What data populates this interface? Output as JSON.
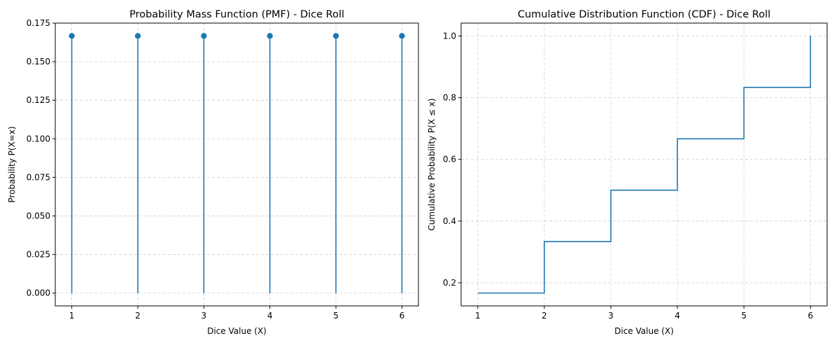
{
  "chart_data": [
    {
      "type": "stem",
      "title": "Probability Mass Function (PMF) - Dice Roll",
      "xlabel": "Dice Value (X)",
      "ylabel": "Probability P(X=x)",
      "x": [
        1,
        2,
        3,
        4,
        5,
        6
      ],
      "y": [
        0.1667,
        0.1667,
        0.1667,
        0.1667,
        0.1667,
        0.1667
      ],
      "xticks": [
        1,
        2,
        3,
        4,
        5,
        6
      ],
      "yticks": [
        "0.000",
        "0.025",
        "0.050",
        "0.075",
        "0.100",
        "0.125",
        "0.150",
        "0.175"
      ],
      "xlim": [
        0.75,
        6.25
      ],
      "ylim": [
        -0.00833,
        0.175
      ],
      "grid": true,
      "color": "#1f77b4"
    },
    {
      "type": "line",
      "step": "post",
      "title": "Cumulative Distribution Function (CDF) - Dice Roll",
      "xlabel": "Dice Value (X)",
      "ylabel": "Cumulative Probability P(X ≤ x)",
      "x": [
        1,
        2,
        3,
        4,
        5,
        6
      ],
      "y": [
        0.1667,
        0.3333,
        0.5,
        0.6667,
        0.8333,
        1.0
      ],
      "xticks": [
        1,
        2,
        3,
        4,
        5,
        6
      ],
      "yticks": [
        "0.2",
        "0.4",
        "0.6",
        "0.8",
        "1.0"
      ],
      "xlim": [
        0.75,
        6.25
      ],
      "ylim": [
        0.125,
        1.0417
      ],
      "grid": true,
      "color": "#1f77b4"
    }
  ]
}
